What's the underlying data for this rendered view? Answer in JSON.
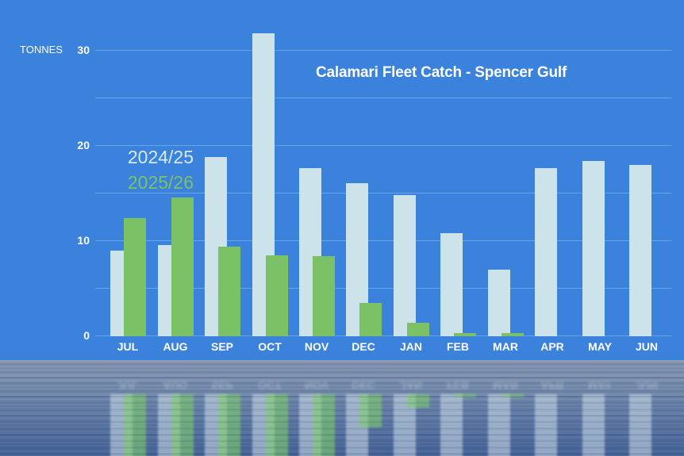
{
  "chart_data": {
    "type": "bar",
    "title": "Calamari  Fleet Catch - Spencer Gulf",
    "xlabel": "",
    "ylabel": "TONNES",
    "ylim": [
      0,
      30
    ],
    "yticks": [
      0,
      10,
      20,
      30
    ],
    "grid": true,
    "legend_position": "left, inside plot area",
    "categories": [
      "JUL",
      "AUG",
      "SEP",
      "OCT",
      "NOV",
      "DEC",
      "JAN",
      "FEB",
      "MAR",
      "APR",
      "MAY",
      "JUN"
    ],
    "series": [
      {
        "name": "2024/25",
        "color": "#cde3ea",
        "values": [
          9.0,
          9.6,
          18.8,
          31.8,
          17.7,
          16.1,
          14.8,
          10.8,
          7.0,
          17.7,
          18.4,
          18.0
        ]
      },
      {
        "name": "2025/26",
        "color": "#7bc266",
        "values": [
          12.4,
          14.6,
          9.4,
          8.5,
          8.4,
          3.5,
          1.4,
          0.3,
          0.3,
          null,
          null,
          null
        ]
      }
    ]
  },
  "labels": {
    "unit": "TONNES",
    "ticks": [
      "30",
      "20",
      "10",
      "0"
    ],
    "legend": [
      "2024/25",
      "2025/26"
    ]
  },
  "colors": {
    "background": "#3b82dc",
    "gridline": "#6aa3e6",
    "series_prev": "#cde3ea",
    "series_curr": "#7bc266",
    "text": "#ffffff"
  }
}
